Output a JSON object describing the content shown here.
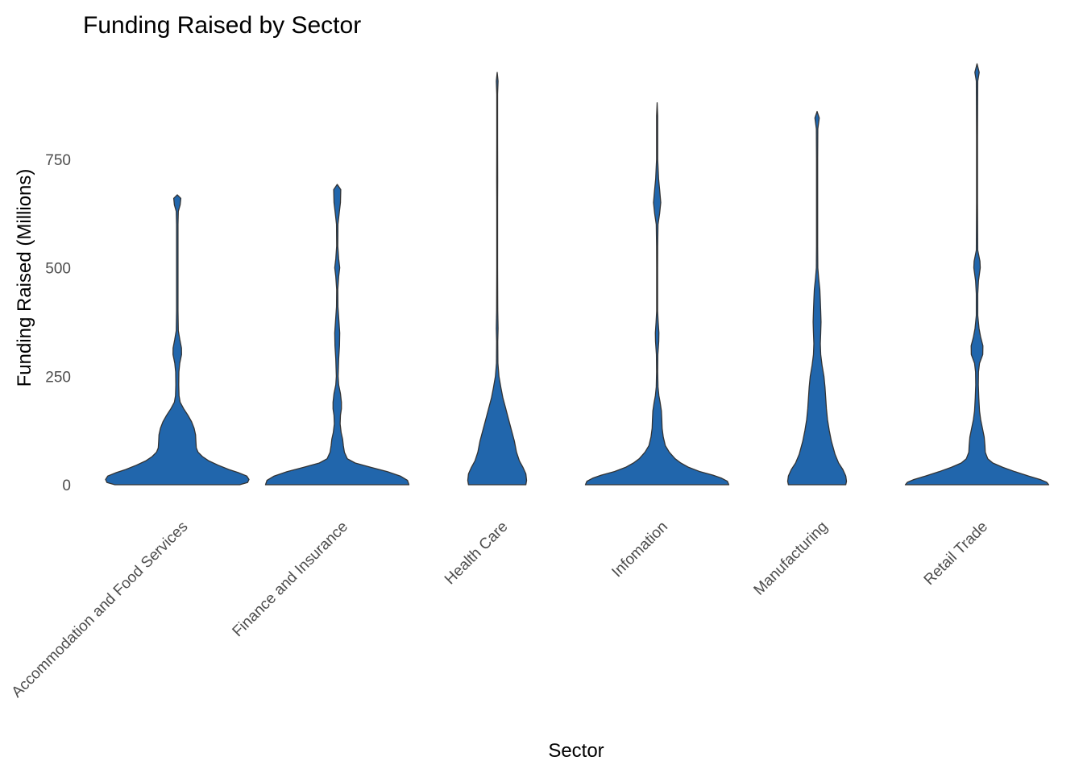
{
  "chart_data": {
    "type": "violin",
    "title": "Funding Raised by Sector",
    "xlabel": "Sector",
    "ylabel": "Funding Raised (Millions)",
    "ylim": [
      -25,
      960
    ],
    "yticks": [
      0,
      250,
      500,
      750
    ],
    "ytick_labels": [
      "0",
      "250",
      "500",
      "750"
    ],
    "categories": [
      "Accommodation and Food Services",
      "Finance and Insurance",
      "Health Care",
      "Infomation",
      "Manufacturing",
      "Retail Trade"
    ],
    "fill_color": "#2166ac",
    "outline_color": "#333333",
    "grid": false,
    "legend": "none",
    "violins": [
      {
        "category": "Accommodation and Food Services",
        "profile": [
          [
            0,
            0.87
          ],
          [
            5,
            0.98
          ],
          [
            12,
            1.0
          ],
          [
            20,
            0.97
          ],
          [
            28,
            0.85
          ],
          [
            35,
            0.72
          ],
          [
            45,
            0.57
          ],
          [
            55,
            0.44
          ],
          [
            65,
            0.35
          ],
          [
            75,
            0.29
          ],
          [
            85,
            0.265
          ],
          [
            100,
            0.26
          ],
          [
            115,
            0.255
          ],
          [
            130,
            0.235
          ],
          [
            145,
            0.2
          ],
          [
            160,
            0.15
          ],
          [
            175,
            0.09
          ],
          [
            190,
            0.04
          ],
          [
            205,
            0.025
          ],
          [
            230,
            0.02
          ],
          [
            260,
            0.022
          ],
          [
            280,
            0.035
          ],
          [
            300,
            0.06
          ],
          [
            315,
            0.058
          ],
          [
            335,
            0.035
          ],
          [
            355,
            0.015
          ],
          [
            400,
            0.01
          ],
          [
            460,
            0.01
          ],
          [
            520,
            0.01
          ],
          [
            600,
            0.01
          ],
          [
            630,
            0.015
          ],
          [
            645,
            0.04
          ],
          [
            660,
            0.05
          ],
          [
            668,
            0.0
          ]
        ]
      },
      {
        "category": "Finance and Insurance",
        "profile": [
          [
            0,
            1.0
          ],
          [
            10,
            0.98
          ],
          [
            20,
            0.88
          ],
          [
            30,
            0.7
          ],
          [
            40,
            0.47
          ],
          [
            50,
            0.25
          ],
          [
            60,
            0.14
          ],
          [
            75,
            0.1
          ],
          [
            90,
            0.085
          ],
          [
            105,
            0.075
          ],
          [
            120,
            0.055
          ],
          [
            140,
            0.04
          ],
          [
            160,
            0.045
          ],
          [
            175,
            0.058
          ],
          [
            190,
            0.058
          ],
          [
            210,
            0.045
          ],
          [
            230,
            0.02
          ],
          [
            250,
            0.012
          ],
          [
            290,
            0.02
          ],
          [
            320,
            0.032
          ],
          [
            350,
            0.035
          ],
          [
            380,
            0.022
          ],
          [
            410,
            0.01
          ],
          [
            450,
            0.008
          ],
          [
            480,
            0.02
          ],
          [
            500,
            0.035
          ],
          [
            520,
            0.02
          ],
          [
            550,
            0.008
          ],
          [
            600,
            0.01
          ],
          [
            630,
            0.03
          ],
          [
            650,
            0.045
          ],
          [
            680,
            0.05
          ],
          [
            692,
            0.0
          ]
        ]
      },
      {
        "category": "Health Care",
        "profile": [
          [
            0,
            0.4
          ],
          [
            10,
            0.41
          ],
          [
            25,
            0.4
          ],
          [
            40,
            0.36
          ],
          [
            55,
            0.31
          ],
          [
            75,
            0.27
          ],
          [
            100,
            0.24
          ],
          [
            125,
            0.2
          ],
          [
            150,
            0.16
          ],
          [
            175,
            0.12
          ],
          [
            200,
            0.08
          ],
          [
            225,
            0.05
          ],
          [
            250,
            0.025
          ],
          [
            280,
            0.01
          ],
          [
            330,
            0.008
          ],
          [
            360,
            0.012
          ],
          [
            400,
            0.008
          ],
          [
            500,
            0.006
          ],
          [
            650,
            0.006
          ],
          [
            700,
            0.007
          ],
          [
            800,
            0.006
          ],
          [
            900,
            0.006
          ],
          [
            930,
            0.012
          ],
          [
            950,
            0.0
          ]
        ]
      },
      {
        "category": "Infomation",
        "profile": [
          [
            0,
            1.0
          ],
          [
            8,
            0.98
          ],
          [
            15,
            0.9
          ],
          [
            22,
            0.78
          ],
          [
            30,
            0.6
          ],
          [
            40,
            0.44
          ],
          [
            50,
            0.33
          ],
          [
            60,
            0.25
          ],
          [
            75,
            0.17
          ],
          [
            90,
            0.115
          ],
          [
            110,
            0.085
          ],
          [
            130,
            0.07
          ],
          [
            150,
            0.065
          ],
          [
            170,
            0.06
          ],
          [
            190,
            0.042
          ],
          [
            205,
            0.025
          ],
          [
            225,
            0.012
          ],
          [
            260,
            0.008
          ],
          [
            300,
            0.01
          ],
          [
            330,
            0.022
          ],
          [
            350,
            0.025
          ],
          [
            375,
            0.015
          ],
          [
            400,
            0.007
          ],
          [
            500,
            0.007
          ],
          [
            550,
            0.008
          ],
          [
            600,
            0.012
          ],
          [
            625,
            0.035
          ],
          [
            650,
            0.05
          ],
          [
            680,
            0.035
          ],
          [
            705,
            0.02
          ],
          [
            750,
            0.008
          ],
          [
            850,
            0.008
          ],
          [
            880,
            0.0
          ]
        ]
      },
      {
        "category": "Manufacturing",
        "profile": [
          [
            0,
            0.4
          ],
          [
            8,
            0.41
          ],
          [
            20,
            0.4
          ],
          [
            35,
            0.36
          ],
          [
            50,
            0.3
          ],
          [
            70,
            0.25
          ],
          [
            100,
            0.2
          ],
          [
            125,
            0.17
          ],
          [
            150,
            0.145
          ],
          [
            175,
            0.13
          ],
          [
            200,
            0.12
          ],
          [
            225,
            0.11
          ],
          [
            250,
            0.095
          ],
          [
            275,
            0.07
          ],
          [
            300,
            0.05
          ],
          [
            325,
            0.045
          ],
          [
            350,
            0.05
          ],
          [
            375,
            0.055
          ],
          [
            400,
            0.05
          ],
          [
            425,
            0.045
          ],
          [
            450,
            0.038
          ],
          [
            475,
            0.022
          ],
          [
            500,
            0.01
          ],
          [
            550,
            0.008
          ],
          [
            650,
            0.008
          ],
          [
            750,
            0.008
          ],
          [
            820,
            0.01
          ],
          [
            845,
            0.03
          ],
          [
            860,
            0.0
          ]
        ]
      },
      {
        "category": "Retail Trade",
        "profile": [
          [
            0,
            1.0
          ],
          [
            6,
            0.97
          ],
          [
            12,
            0.88
          ],
          [
            20,
            0.72
          ],
          [
            30,
            0.53
          ],
          [
            40,
            0.36
          ],
          [
            50,
            0.22
          ],
          [
            60,
            0.15
          ],
          [
            75,
            0.115
          ],
          [
            90,
            0.11
          ],
          [
            110,
            0.1
          ],
          [
            130,
            0.075
          ],
          [
            150,
            0.05
          ],
          [
            170,
            0.035
          ],
          [
            200,
            0.025
          ],
          [
            230,
            0.018
          ],
          [
            260,
            0.02
          ],
          [
            280,
            0.035
          ],
          [
            300,
            0.08
          ],
          [
            320,
            0.082
          ],
          [
            340,
            0.05
          ],
          [
            360,
            0.028
          ],
          [
            390,
            0.01
          ],
          [
            440,
            0.01
          ],
          [
            470,
            0.02
          ],
          [
            500,
            0.045
          ],
          [
            515,
            0.04
          ],
          [
            540,
            0.01
          ],
          [
            650,
            0.007
          ],
          [
            800,
            0.007
          ],
          [
            930,
            0.01
          ],
          [
            950,
            0.03
          ],
          [
            970,
            0.0
          ]
        ]
      }
    ]
  }
}
